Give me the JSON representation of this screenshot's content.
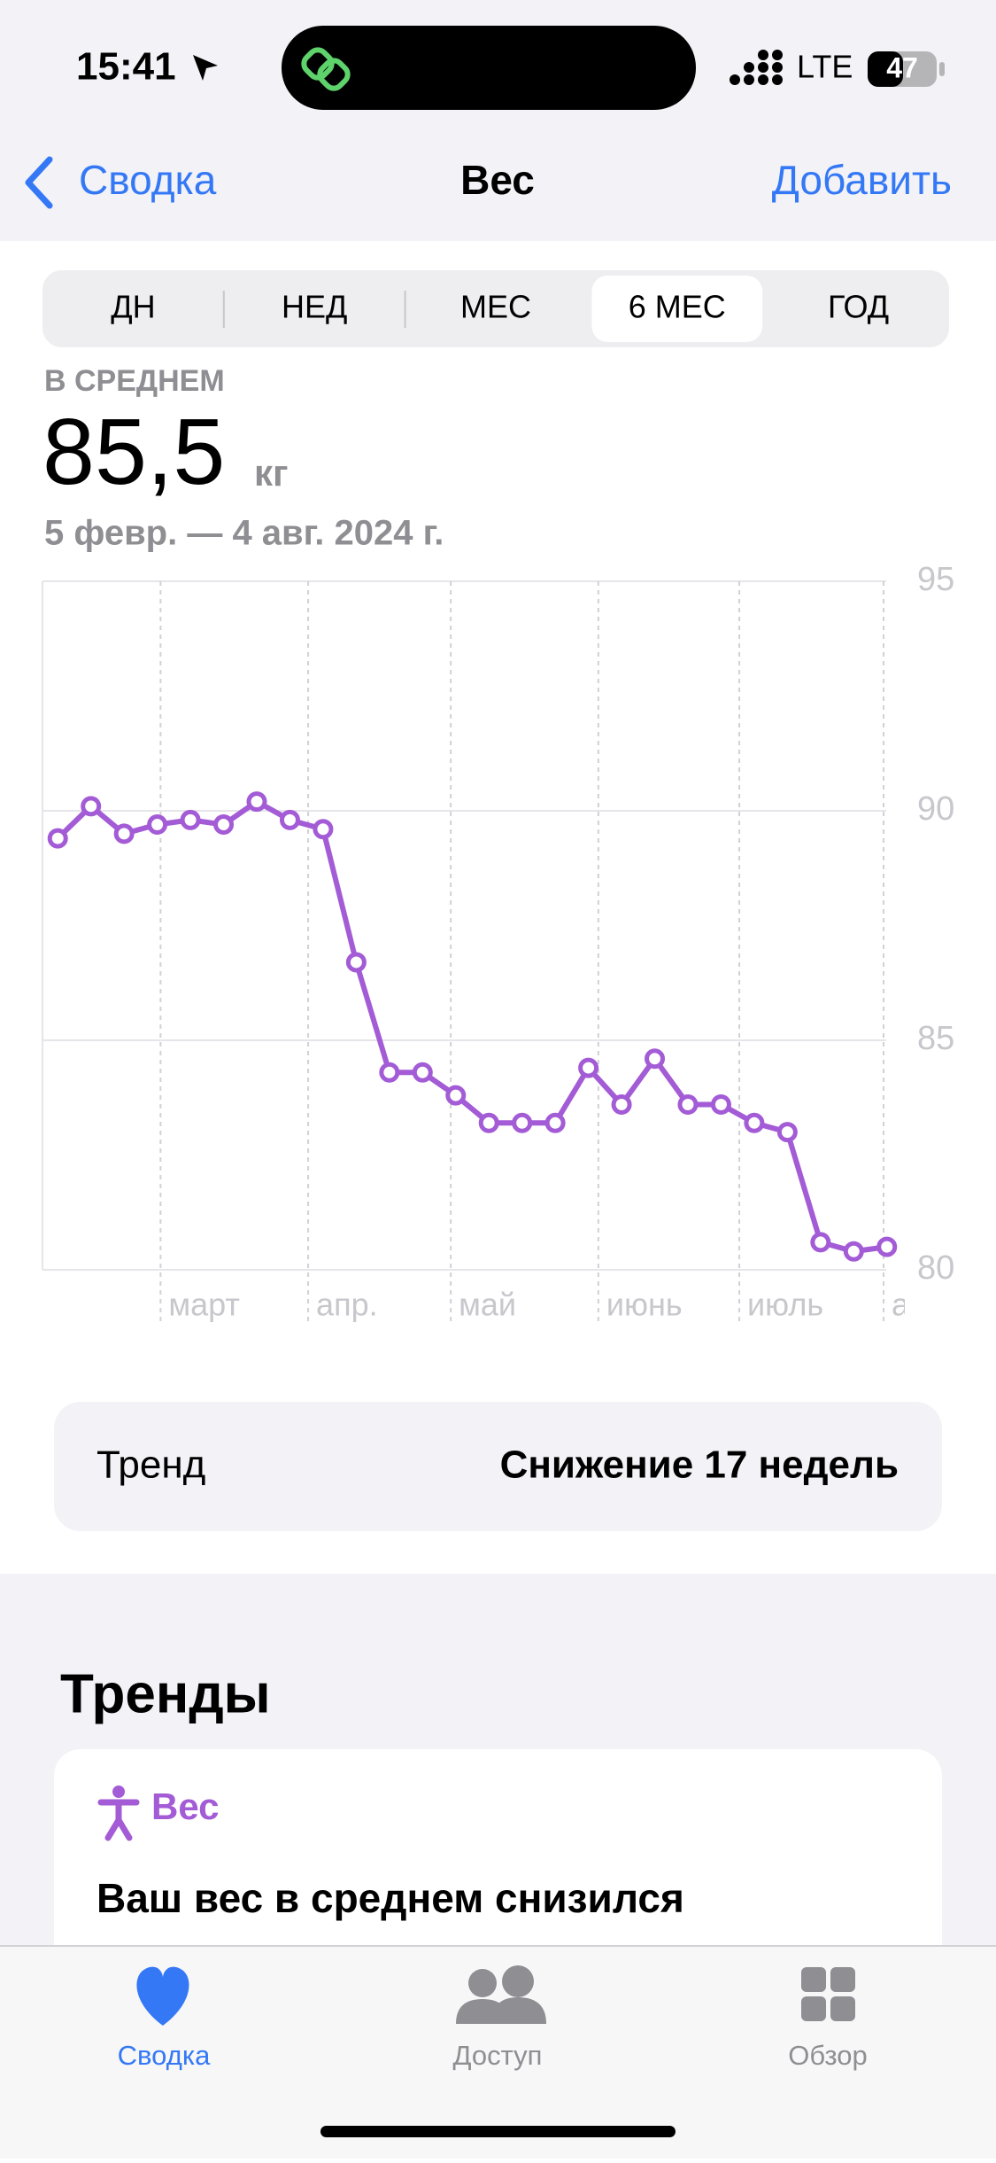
{
  "status_bar": {
    "time": "15:41",
    "network": "LTE",
    "battery": "47"
  },
  "nav": {
    "back": "Сводка",
    "title": "Вес",
    "action": "Добавить"
  },
  "segments": {
    "items": [
      "ДН",
      "НЕД",
      "МЕС",
      "6 МЕС",
      "ГОД"
    ],
    "selected": 3
  },
  "summary": {
    "label": "В СРЕДНЕМ",
    "value": "85,5",
    "unit": "кг",
    "range": "5 февр. — 4 авг. 2024 г."
  },
  "chart_data": {
    "type": "line",
    "color": "#a35bd6",
    "grid": true,
    "values": [
      89.4,
      90.1,
      89.5,
      89.7,
      89.8,
      89.7,
      90.2,
      89.8,
      89.6,
      86.7,
      84.3,
      84.3,
      83.8,
      83.2,
      83.2,
      83.2,
      84.4,
      83.6,
      84.6,
      83.6,
      83.6,
      83.2,
      83.0,
      80.6,
      80.4,
      80.5
    ],
    "ylim": [
      80,
      95
    ],
    "yticks": [
      80,
      85,
      90,
      95
    ],
    "xlim": [
      -0.46,
      24.98
    ],
    "xticks": [
      {
        "value": 3.1,
        "label": "март"
      },
      {
        "value": 7.55,
        "label": "апр."
      },
      {
        "value": 11.85,
        "label": "май"
      },
      {
        "value": 16.3,
        "label": "июнь"
      },
      {
        "value": 20.55,
        "label": "июль"
      },
      {
        "value": 24.9,
        "label": "а"
      }
    ]
  },
  "trend_row": {
    "label": "Тренд",
    "value": "Снижение 17 недель"
  },
  "trends": {
    "title": "Тренды",
    "card_title": "Вес",
    "card_text": "Ваш вес в среднем снизился"
  },
  "tab_bar": {
    "items": [
      "Сводка",
      "Доступ",
      "Обзор"
    ]
  }
}
